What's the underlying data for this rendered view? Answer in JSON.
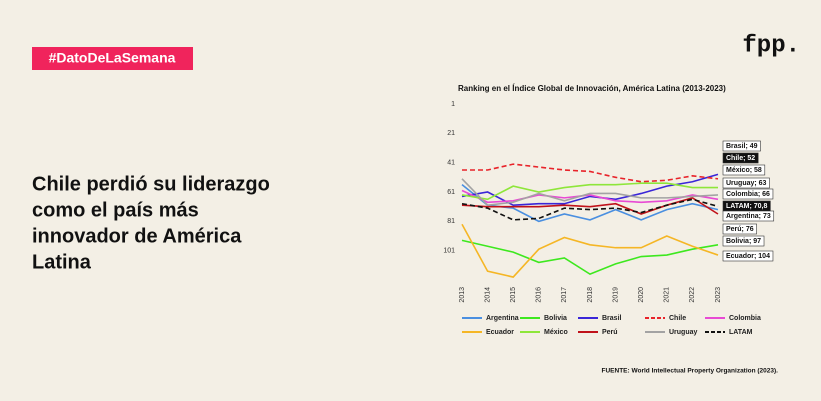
{
  "hashtag": "#DatoDeLaSemana",
  "logo": "fpp.",
  "headline": [
    "Chile perdió su liderazgo",
    "como el país más",
    "innovador de América",
    "Latina"
  ],
  "source": "FUENTE: World Intellectual Property Organization (2023).",
  "chart_data": {
    "type": "line",
    "title": "Ranking en el Índice Global de Innovación, América Latina (2013-2023)",
    "x": [
      "2013",
      "2014",
      "2015",
      "2016",
      "2017",
      "2018",
      "2019",
      "2020",
      "2021",
      "2022",
      "2023"
    ],
    "ylim": [
      121,
      1
    ],
    "yticks": [
      1,
      21,
      41,
      61,
      81,
      101
    ],
    "grid": false,
    "series": [
      {
        "name": "Argentina",
        "color": "#4a8fe0",
        "dashed": false,
        "values": [
          56,
          70,
          72,
          81,
          76,
          80,
          73,
          80,
          73,
          69,
          73
        ]
      },
      {
        "name": "Bolivia",
        "color": "#3de81e",
        "dashed": false,
        "values": [
          94,
          98,
          102,
          109,
          106,
          117,
          110,
          105,
          104,
          100,
          97
        ]
      },
      {
        "name": "Brasil",
        "color": "#3a26d8",
        "dashed": false,
        "values": [
          64,
          61,
          70,
          69,
          69,
          64,
          66,
          62,
          57,
          54,
          49
        ]
      },
      {
        "name": "Chile",
        "color": "#e8232a",
        "dashed": true,
        "values": [
          46,
          46,
          42,
          44,
          46,
          47,
          51,
          54,
          53,
          50,
          52
        ]
      },
      {
        "name": "Colombia",
        "color": "#e84ad4",
        "dashed": false,
        "values": [
          60,
          68,
          67,
          63,
          65,
          63,
          67,
          68,
          67,
          63,
          66
        ]
      },
      {
        "name": "Ecuador",
        "color": "#f5b625",
        "dashed": false,
        "values": [
          83,
          115,
          119,
          100,
          92,
          97,
          99,
          99,
          91,
          98,
          104
        ]
      },
      {
        "name": "México",
        "color": "#8ee63a",
        "dashed": false,
        "values": [
          63,
          66,
          57,
          61,
          58,
          56,
          56,
          55,
          55,
          58,
          58
        ]
      },
      {
        "name": "Perú",
        "color": "#c0121a",
        "dashed": false,
        "values": [
          70,
          71,
          71,
          71,
          70,
          71,
          69,
          76,
          70,
          65,
          76
        ]
      },
      {
        "name": "Uruguay",
        "color": "#a3a3a3",
        "dashed": false,
        "values": [
          52,
          70,
          68,
          62,
          67,
          62,
          62,
          65,
          65,
          64,
          63
        ]
      },
      {
        "name": "LATAM",
        "color": "#111111",
        "dashed": true,
        "values": [
          69,
          72,
          80,
          79,
          72,
          73,
          72,
          75,
          70,
          66,
          70.8
        ]
      }
    ],
    "end_labels": [
      "Brasil; 49",
      "Chile; 52",
      "México; 58",
      "Uruguay; 63",
      "Colombia; 66",
      "LATAM; 70,8",
      "Argentina; 73",
      "Perú; 76",
      "Bolivia; 97",
      "Ecuador; 104"
    ]
  }
}
